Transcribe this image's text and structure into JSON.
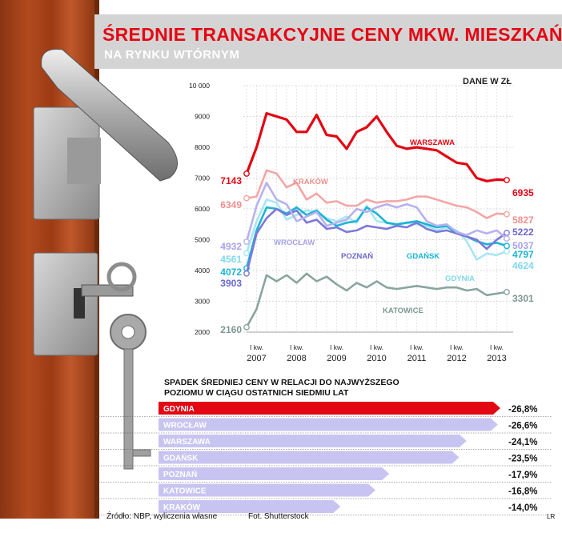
{
  "header": {
    "title": "ŚREDNIE TRANSAKCYJNE CENY MKW. MIESZKAŃ",
    "subtitle": "NA RYNKU WTÓRNYM",
    "unit": "DANE W ZŁ"
  },
  "colors": {
    "warszawa": "#e30613",
    "krakow": "#f4a6a6",
    "wroclaw": "#b7b2ee",
    "poznan": "#7d79d8",
    "gdansk": "#18b4d6",
    "gdynia": "#a8e6f3",
    "katowice": "#8aa5a0",
    "bar_highlight": "#e30613",
    "bar_default": "#c8c4f2",
    "title_band": "#d4d4d4"
  },
  "chart_data": [
    {
      "type": "line",
      "title": "ŚREDNIE TRANSAKCYJNE CENY MKW. MIESZKAŃ",
      "subtitle": "NA RYNKU WTÓRNYM",
      "ylabel": "DANE W ZŁ",
      "ylim": [
        2000,
        10000
      ],
      "yticks": [
        2000,
        3000,
        4000,
        5000,
        6000,
        7000,
        8000,
        9000,
        10000
      ],
      "ytick_labels": [
        "2000",
        "3000",
        "4000",
        "5000",
        "6000",
        "7000",
        "8000",
        "9000",
        "10 000"
      ],
      "x_tick_top": "I kw.",
      "x_labels": [
        "2007",
        "2008",
        "2009",
        "2010",
        "2011",
        "2012",
        "2013"
      ],
      "quarters": 27,
      "grid": true,
      "series": [
        {
          "name": "WARSZAWA",
          "color": "#e30613",
          "start_label": "7143",
          "end_label": "6935",
          "values": [
            7143,
            8000,
            9100,
            9000,
            8900,
            8500,
            8500,
            9050,
            8400,
            8350,
            7950,
            8500,
            8650,
            9000,
            8500,
            8050,
            7950,
            8000,
            7950,
            7900,
            7700,
            7500,
            7450,
            7000,
            6900,
            6950,
            6935
          ]
        },
        {
          "name": "KRAKÓW",
          "color": "#f4a6a6",
          "start_label": "6349",
          "end_label": "5827",
          "values": [
            6349,
            6400,
            7250,
            7150,
            6700,
            6850,
            6300,
            6500,
            6200,
            6250,
            6100,
            6100,
            6300,
            6200,
            6250,
            6250,
            6300,
            6400,
            6400,
            6300,
            6200,
            6100,
            6050,
            5900,
            5700,
            5850,
            5827
          ]
        },
        {
          "name": "WROCŁAW",
          "color": "#b7b2ee",
          "start_label": "4932",
          "end_label": "5037",
          "values": [
            4932,
            6100,
            6850,
            6300,
            6150,
            5600,
            5750,
            5900,
            5450,
            5550,
            5650,
            6000,
            5900,
            6050,
            6150,
            6050,
            6150,
            6050,
            5600,
            5450,
            5500,
            5250,
            5150,
            5300,
            5200,
            5300,
            5037
          ]
        },
        {
          "name": "POZNAŃ",
          "color": "#7d79d8",
          "start_label": "3903",
          "end_label": "5222",
          "values": [
            3903,
            5200,
            5700,
            6000,
            5800,
            5950,
            5550,
            5650,
            5350,
            5400,
            5250,
            5300,
            5450,
            5400,
            5350,
            5450,
            5400,
            5550,
            5350,
            5250,
            5300,
            5200,
            5100,
            5000,
            4700,
            5000,
            5222
          ]
        },
        {
          "name": "GDAŃSK",
          "color": "#18b4d6",
          "start_label": "4072",
          "end_label": "4797",
          "values": [
            4072,
            5300,
            6050,
            6000,
            5850,
            6050,
            5800,
            5950,
            5650,
            5450,
            5550,
            5600,
            6050,
            5850,
            5550,
            5500,
            5550,
            5600,
            5500,
            5400,
            5450,
            5200,
            5100,
            4950,
            4850,
            4900,
            4797
          ]
        },
        {
          "name": "GDYNIA",
          "color": "#a8e6f3",
          "start_label": "4561",
          "end_label": "4624",
          "values": [
            4561,
            5600,
            6300,
            6200,
            5650,
            5800,
            5950,
            5900,
            5700,
            5600,
            5750,
            5550,
            6100,
            5600,
            5550,
            5450,
            5550,
            5500,
            5450,
            5300,
            5400,
            5300,
            4950,
            4350,
            4550,
            4500,
            4624
          ]
        },
        {
          "name": "KATOWICE",
          "color": "#8aa5a0",
          "start_label": "2160",
          "end_label": "3301",
          "values": [
            2160,
            2750,
            3850,
            3650,
            3850,
            3600,
            3900,
            3650,
            3800,
            3550,
            3350,
            3600,
            3450,
            3650,
            3450,
            3400,
            3450,
            3500,
            3450,
            3400,
            3450,
            3450,
            3350,
            3400,
            3200,
            3250,
            3301
          ]
        }
      ]
    },
    {
      "type": "bar",
      "title": "SPADEK ŚREDNIEJ CENY W RELACJI DO NAJWYŻSZEGO POZIOMU W CIĄGU OSTATNICH SIEDMIU LAT",
      "categories": [
        "GDYNIA",
        "WROCŁAW",
        "WARSZAWA",
        "GDAŃSK",
        "POZNAŃ",
        "KATOWICE",
        "KRAKÓW"
      ],
      "values": [
        -26.8,
        -26.6,
        -24.1,
        -23.5,
        -17.9,
        -16.8,
        -14.0
      ],
      "value_labels": [
        "-26,8%",
        "-26,6%",
        "-24,1%",
        "-23,5%",
        "-17,9%",
        "-16,8%",
        "-14,0%"
      ]
    }
  ],
  "footer": {
    "source": "Źródło: NBP, wyliczenia własne",
    "photo": "Fot. Shutterstock",
    "initials": "LR"
  }
}
